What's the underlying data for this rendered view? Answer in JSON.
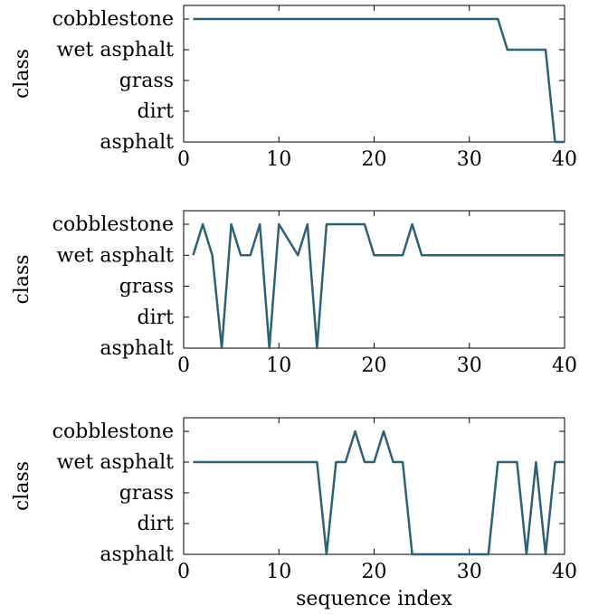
{
  "chart_data": [
    {
      "type": "line",
      "xlabel": "",
      "ylabel": "class",
      "xlim": [
        0,
        40
      ],
      "xticks": [
        "0",
        "10",
        "20",
        "30",
        "40"
      ],
      "yticks": [
        "asphalt",
        "dirt",
        "grass",
        "wet asphalt",
        "cobblestone"
      ],
      "grid": false,
      "series_color": "#2e6176",
      "series": [
        {
          "x": [
            1,
            33,
            34,
            38,
            39,
            40
          ],
          "y": [
            "cobblestone",
            "cobblestone",
            "wet asphalt",
            "wet asphalt",
            "asphalt",
            "asphalt"
          ]
        }
      ]
    },
    {
      "type": "line",
      "xlabel": "",
      "ylabel": "class",
      "xlim": [
        0,
        40
      ],
      "xticks": [
        "0",
        "10",
        "20",
        "30",
        "40"
      ],
      "yticks": [
        "asphalt",
        "dirt",
        "grass",
        "wet asphalt",
        "cobblestone"
      ],
      "grid": false,
      "series_color": "#2e6176",
      "series": [
        {
          "x": [
            1,
            2,
            3,
            4,
            5,
            6,
            7,
            8,
            9,
            10,
            12,
            13,
            14,
            15,
            19,
            20,
            23,
            24,
            25,
            40
          ],
          "y": [
            "wet asphalt",
            "cobblestone",
            "wet asphalt",
            "asphalt",
            "cobblestone",
            "wet asphalt",
            "wet asphalt",
            "cobblestone",
            "asphalt",
            "cobblestone",
            "wet asphalt",
            "cobblestone",
            "asphalt",
            "cobblestone",
            "cobblestone",
            "wet asphalt",
            "wet asphalt",
            "cobblestone",
            "wet asphalt",
            "wet asphalt"
          ]
        }
      ]
    },
    {
      "type": "line",
      "xlabel": "sequence index",
      "ylabel": "class",
      "xlim": [
        0,
        40
      ],
      "xticks": [
        "0",
        "10",
        "20",
        "30",
        "40"
      ],
      "yticks": [
        "asphalt",
        "dirt",
        "grass",
        "wet asphalt",
        "cobblestone"
      ],
      "grid": false,
      "series_color": "#2e6176",
      "series": [
        {
          "x": [
            1,
            14,
            15,
            16,
            17,
            18,
            19,
            20,
            21,
            22,
            23,
            24,
            32,
            33,
            35,
            36,
            37,
            38,
            39,
            40
          ],
          "y": [
            "wet asphalt",
            "wet asphalt",
            "asphalt",
            "wet asphalt",
            "wet asphalt",
            "cobblestone",
            "wet asphalt",
            "wet asphalt",
            "cobblestone",
            "wet asphalt",
            "wet asphalt",
            "asphalt",
            "asphalt",
            "wet asphalt",
            "wet asphalt",
            "asphalt",
            "wet asphalt",
            "asphalt",
            "wet asphalt",
            "wet asphalt"
          ]
        }
      ]
    }
  ]
}
